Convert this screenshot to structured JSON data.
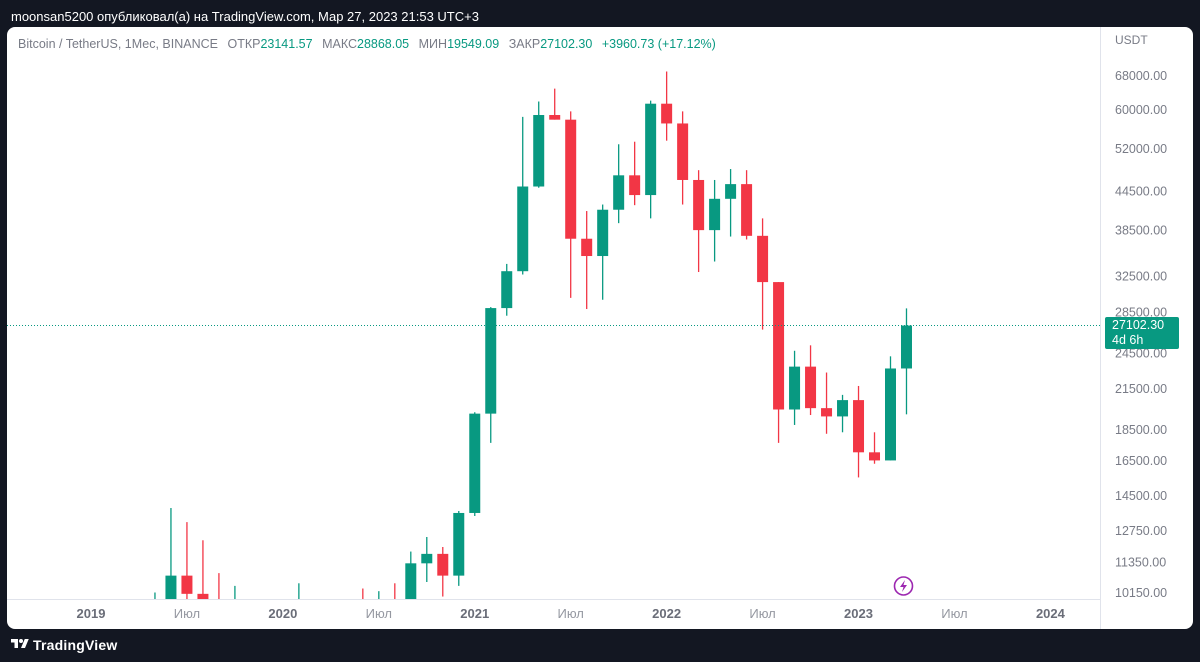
{
  "header": {
    "publisher_line": "moonsan5200 опубликовал(а) на TradingView.com, Мар 27, 2023 21:53 UTC+3"
  },
  "legend": {
    "symbol": "Bitcoin / TetherUS, 1Мес, BINANCE",
    "open_label": "ОТКР",
    "open_value": "23141.57",
    "high_label": "МАКС",
    "high_value": "28868.05",
    "low_label": "МИН",
    "low_value": "19549.09",
    "close_label": "ЗАКР",
    "close_value": "27102.30",
    "change": "+3960.73 (+17.12%)"
  },
  "axis": {
    "currency": "USDT"
  },
  "price_tag": {
    "price": "27102.30",
    "countdown": "4d 6h"
  },
  "footer": {
    "brand": "TradingView"
  },
  "colors": {
    "up": "#089981",
    "down": "#f23645",
    "background": "#ffffff",
    "frame": "#131722",
    "event_icon": "#9c27b0"
  },
  "icons": {
    "event": "lightning-icon",
    "logo": "tradingview-logo-icon"
  },
  "chart_data": {
    "type": "candlestick",
    "symbol": "Bitcoin / TetherUS",
    "interval": "1Мес",
    "scale": "log",
    "y_ticks": [
      10150,
      11350,
      12750,
      14500,
      16500,
      18500,
      21500,
      24500,
      28500,
      32500,
      38500,
      44500,
      52000,
      60000,
      68000
    ],
    "y_tick_labels": [
      "10150.00",
      "11350.00",
      "12750.00",
      "14500.00",
      "16500.00",
      "18500.00",
      "21500.00",
      "24500.00",
      "28500.00",
      "32500.00",
      "38500.00",
      "44500.00",
      "52000.00",
      "60000.00",
      "68000.00"
    ],
    "x_labels": [
      "2019",
      "Июл",
      "2020",
      "Июл",
      "2021",
      "Июл",
      "2022",
      "Июл",
      "2023",
      "Июл",
      "2024"
    ],
    "last_price": 27102.3,
    "candles": [
      {
        "date": "2019-05",
        "o": 9800,
        "h": 10150,
        "l": 9600,
        "c": 9900
      },
      {
        "date": "2019-06",
        "o": 9800,
        "h": 13850,
        "l": 9600,
        "c": 10800
      },
      {
        "date": "2019-07",
        "o": 10800,
        "h": 13150,
        "l": 9300,
        "c": 10100
      },
      {
        "date": "2019-08",
        "o": 10100,
        "h": 12300,
        "l": 9450,
        "c": 9600
      },
      {
        "date": "2019-09",
        "o": 9600,
        "h": 10900,
        "l": 9500,
        "c": 9500
      },
      {
        "date": "2019-10",
        "o": 9500,
        "h": 10400,
        "l": 9500,
        "c": 9500
      },
      {
        "date": "2020-02",
        "o": 9500,
        "h": 10500,
        "l": 9500,
        "c": 9500
      },
      {
        "date": "2020-06",
        "o": 9700,
        "h": 10300,
        "l": 9500,
        "c": 9500
      },
      {
        "date": "2020-07",
        "o": 9500,
        "h": 10200,
        "l": 9500,
        "c": 9600
      },
      {
        "date": "2020-08",
        "o": 9600,
        "h": 10500,
        "l": 9450,
        "c": 9500
      },
      {
        "date": "2020-09",
        "o": 9500,
        "h": 11800,
        "l": 9450,
        "c": 11300
      },
      {
        "date": "2020-10",
        "o": 11300,
        "h": 12450,
        "l": 10550,
        "c": 11700
      },
      {
        "date": "2020-11",
        "o": 11700,
        "h": 12000,
        "l": 10000,
        "c": 10800
      },
      {
        "date": "2020-12",
        "o": 10800,
        "h": 13700,
        "l": 10400,
        "c": 13600
      },
      {
        "date": "2021-01",
        "o": 13600,
        "h": 19700,
        "l": 13450,
        "c": 19600
      },
      {
        "date": "2021-02",
        "o": 19600,
        "h": 29000,
        "l": 17600,
        "c": 28900
      },
      {
        "date": "2021-03",
        "o": 28900,
        "h": 34000,
        "l": 28100,
        "c": 33100
      },
      {
        "date": "2021-04",
        "o": 33100,
        "h": 58400,
        "l": 32700,
        "c": 45200
      },
      {
        "date": "2021-05",
        "o": 45200,
        "h": 61800,
        "l": 45000,
        "c": 58800
      },
      {
        "date": "2021-06",
        "o": 58800,
        "h": 64800,
        "l": 57800,
        "c": 57800
      },
      {
        "date": "2021-07",
        "o": 57800,
        "h": 59600,
        "l": 30000,
        "c": 37300
      },
      {
        "date": "2021-08",
        "o": 37300,
        "h": 41300,
        "l": 28800,
        "c": 35000
      },
      {
        "date": "2021-09",
        "o": 35000,
        "h": 42300,
        "l": 29800,
        "c": 41500
      },
      {
        "date": "2021-10",
        "o": 41500,
        "h": 52800,
        "l": 39500,
        "c": 47100
      },
      {
        "date": "2021-11",
        "o": 47100,
        "h": 53300,
        "l": 42200,
        "c": 43800
      },
      {
        "date": "2021-12",
        "o": 43800,
        "h": 62000,
        "l": 40200,
        "c": 61300
      },
      {
        "date": "2022-01",
        "o": 61300,
        "h": 69000,
        "l": 53500,
        "c": 57000
      },
      {
        "date": "2022-02",
        "o": 57000,
        "h": 59600,
        "l": 42300,
        "c": 46300
      },
      {
        "date": "2022-03",
        "o": 46300,
        "h": 48000,
        "l": 33000,
        "c": 38500
      },
      {
        "date": "2022-04",
        "o": 38500,
        "h": 46300,
        "l": 34300,
        "c": 43200
      },
      {
        "date": "2022-05",
        "o": 43200,
        "h": 48200,
        "l": 37600,
        "c": 45600
      },
      {
        "date": "2022-06",
        "o": 45600,
        "h": 48000,
        "l": 37200,
        "c": 37700
      },
      {
        "date": "2022-07",
        "o": 37700,
        "h": 40200,
        "l": 26700,
        "c": 31800
      },
      {
        "date": "2022-08",
        "o": 31800,
        "h": 31800,
        "l": 17600,
        "c": 19900
      },
      {
        "date": "2022-09",
        "o": 19900,
        "h": 24700,
        "l": 18800,
        "c": 23300
      },
      {
        "date": "2022-10",
        "o": 23300,
        "h": 25200,
        "l": 19500,
        "c": 20000
      },
      {
        "date": "2022-11",
        "o": 20000,
        "h": 22800,
        "l": 18200,
        "c": 19400
      },
      {
        "date": "2022-12",
        "o": 19400,
        "h": 21000,
        "l": 18300,
        "c": 20600
      },
      {
        "date": "2023-01",
        "o": 20600,
        "h": 21700,
        "l": 15500,
        "c": 17000
      },
      {
        "date": "2023-02",
        "o": 17000,
        "h": 18300,
        "l": 16300,
        "c": 16500
      },
      {
        "date": "2023-03",
        "o": 16500,
        "h": 24200,
        "l": 16500,
        "c": 23141.57
      },
      {
        "date": "2023-04",
        "o": 23141.57,
        "h": 28868.05,
        "l": 19549.09,
        "c": 27102.3
      }
    ]
  }
}
